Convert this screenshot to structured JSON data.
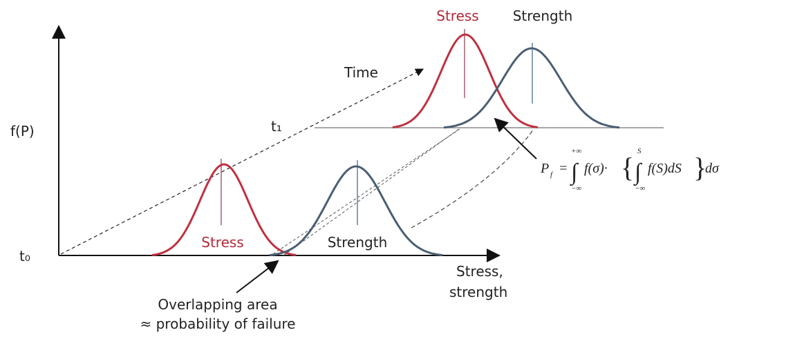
{
  "axes": {
    "y_label": "f(P)",
    "x_label_line1": "Stress,",
    "x_label_line2": "strength",
    "t0": "t₀",
    "t1": "t₁",
    "time": "Time"
  },
  "bottom": {
    "stress": "Stress",
    "strength": "Strength"
  },
  "top": {
    "stress": "Stress",
    "strength": "Strength"
  },
  "overlap": {
    "line1": "Overlapping area",
    "line2": "≈ probability of failure"
  },
  "formula": {
    "lhs": "P",
    "lhs_sub": "f",
    "eq": "=",
    "integral": "∫",
    "outer_upper": "+∞",
    "outer_lower": "−∞",
    "integrand": "f(σ)·",
    "open_brace": "{",
    "inner_upper": "S",
    "inner_lower": "−∞",
    "inner": "f(S)dS",
    "close_brace": "}",
    "tail": "dσ"
  }
}
